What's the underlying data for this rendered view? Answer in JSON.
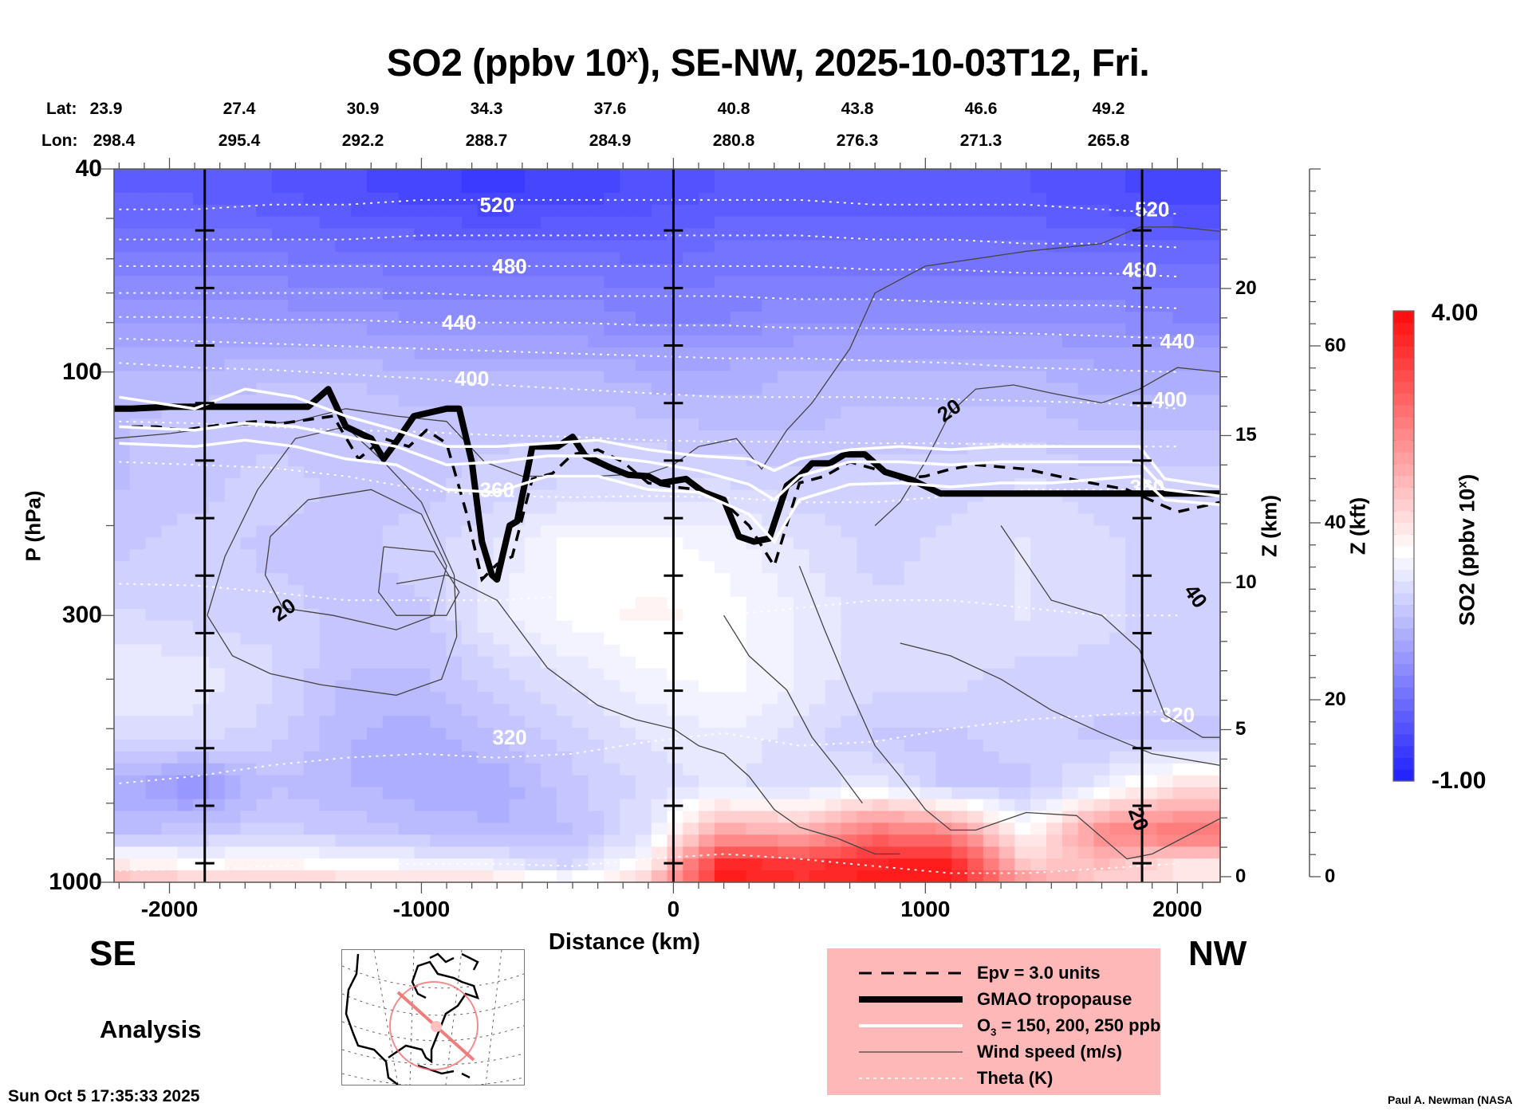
{
  "title": {
    "main": "SO2 (ppbv 10",
    "sup": "x",
    "rest": "), SE-NW, 2025-10-03T12, Fri."
  },
  "header": {
    "lat_label": "Lat:",
    "lon_label": "Lon:",
    "lat": [
      "23.9",
      "27.4",
      "30.9",
      "34.3",
      "37.6",
      "40.8",
      "43.8",
      "46.6",
      "49.2"
    ],
    "lon": [
      "298.4",
      "295.4",
      "292.2",
      "288.7",
      "284.9",
      "280.8",
      "276.3",
      "271.3",
      "265.8"
    ]
  },
  "labels": {
    "se": "SE",
    "nw": "NW",
    "analysis": "Analysis",
    "timestamp": "Sun Oct  5 17:35:33 2025",
    "credit": "Paul A. Newman (NASA"
  },
  "legend": [
    {
      "label": "Epv = 3.0 units",
      "style": "dashed"
    },
    {
      "label": "GMAO tropopause",
      "style": "thick"
    },
    {
      "label": "O",
      "sub": "3",
      "label_rest": " = 150, 200, 250 ppb",
      "style": "white"
    },
    {
      "label": "Wind speed (m/s)",
      "style": "thin"
    },
    {
      "label": "Theta (K)",
      "style": "dotted"
    }
  ],
  "colors": {
    "min": "#0000c8",
    "low": "#1818ff",
    "mid": "#ffffff",
    "high": "#ff1010",
    "legend_bg": "#ffb8b8",
    "map_track": "#f07070"
  },
  "chart_data": {
    "type": "heatmap",
    "title": "SO2 (ppbv 10^x), SE-NW, 2025-10-03T12, Fri.",
    "xlabel": "Distance (km)",
    "ylabel": "P (hPa)",
    "y2label": "Z (km)",
    "y3label": "Z (kft)",
    "xlim": [
      -2220,
      2170
    ],
    "ylim": [
      1000,
      40
    ],
    "yscale": "log",
    "x_ticks": [
      -2000,
      -1000,
      0,
      1000,
      2000
    ],
    "x_tick_labels": [
      "-2000",
      "-1000",
      "0",
      "1000",
      "2000"
    ],
    "y_ticks": [
      40,
      100,
      300,
      1000
    ],
    "y_tick_labels": [
      "40",
      "100",
      "300",
      "1000"
    ],
    "z_km_ticks": [
      0,
      5,
      10,
      15,
      20
    ],
    "z_km_range": [
      0,
      24.2
    ],
    "z_kft_ticks": [
      0,
      20,
      40,
      60
    ],
    "z_kft_range": [
      0,
      80
    ],
    "vertical_markers_km": [
      -1860,
      0,
      1860
    ],
    "colorbar": {
      "label": "SO2 (ppbv 10^x)",
      "min": -1.0,
      "max": 4.0,
      "min_label": "-1.00",
      "max_label": "4.00",
      "levels": 40
    },
    "so2_grid": {
      "x": [
        -2200,
        -1900,
        -1600,
        -1300,
        -1000,
        -700,
        -400,
        -100,
        200,
        500,
        800,
        1100,
        1400,
        1700,
        2000
      ],
      "p": [
        45,
        60,
        80,
        100,
        130,
        170,
        220,
        300,
        400,
        520,
        650,
        800,
        920,
        990
      ],
      "values": [
        [
          -0.2,
          -0.2,
          -0.3,
          -0.4,
          -0.5,
          -0.6,
          -0.5,
          -0.4,
          -0.3,
          -0.3,
          -0.3,
          -0.3,
          -0.3,
          -0.4,
          -0.5
        ],
        [
          0.1,
          0.1,
          0.1,
          0.0,
          0.0,
          0.0,
          0.0,
          -0.1,
          0.0,
          0.0,
          0.0,
          0.0,
          0.0,
          0.0,
          -0.1
        ],
        [
          0.4,
          0.4,
          0.4,
          0.4,
          0.3,
          0.3,
          0.3,
          0.2,
          0.2,
          0.3,
          0.3,
          0.3,
          0.3,
          0.3,
          0.2
        ],
        [
          0.7,
          0.7,
          0.8,
          0.8,
          0.7,
          0.7,
          0.7,
          0.6,
          0.6,
          0.7,
          0.7,
          0.7,
          0.7,
          0.6,
          0.6
        ],
        [
          0.8,
          0.9,
          0.9,
          0.9,
          0.9,
          0.9,
          0.9,
          0.9,
          0.8,
          0.8,
          0.9,
          0.9,
          0.9,
          0.8,
          0.8
        ],
        [
          0.8,
          0.9,
          1.0,
          0.9,
          0.9,
          1.0,
          1.1,
          1.1,
          1.1,
          1.0,
          1.0,
          1.0,
          1.1,
          1.0,
          1.0
        ],
        [
          0.9,
          1.0,
          0.9,
          0.9,
          1.0,
          1.2,
          1.5,
          1.5,
          1.4,
          1.2,
          1.0,
          1.1,
          1.2,
          1.1,
          1.0
        ],
        [
          1.1,
          1.0,
          1.0,
          0.9,
          0.9,
          1.3,
          1.5,
          1.6,
          1.5,
          1.3,
          1.1,
          1.1,
          1.2,
          1.1,
          1.0
        ],
        [
          1.3,
          1.3,
          1.1,
          0.8,
          0.8,
          1.0,
          1.2,
          1.4,
          1.5,
          1.3,
          1.1,
          1.1,
          1.0,
          1.0,
          1.0
        ],
        [
          1.1,
          1.1,
          1.0,
          0.7,
          0.6,
          0.8,
          1.0,
          1.2,
          1.3,
          1.1,
          0.9,
          0.9,
          1.0,
          0.9,
          0.9
        ],
        [
          0.6,
          0.3,
          0.8,
          0.7,
          0.6,
          0.6,
          0.9,
          1.1,
          1.2,
          1.1,
          1.3,
          0.9,
          0.9,
          1.3,
          1.8
        ],
        [
          0.8,
          0.9,
          1.0,
          0.9,
          0.8,
          0.7,
          0.8,
          1.2,
          2.5,
          2.3,
          3.0,
          2.8,
          1.5,
          2.8,
          3.0
        ],
        [
          1.7,
          1.5,
          1.6,
          1.5,
          1.4,
          1.3,
          1.0,
          1.6,
          3.8,
          3.6,
          3.8,
          3.9,
          2.0,
          2.2,
          1.8
        ],
        [
          2.2,
          2.0,
          1.9,
          1.9,
          1.8,
          1.8,
          1.5,
          2.0,
          3.9,
          3.7,
          3.9,
          3.9,
          2.5,
          2.0,
          1.8
        ]
      ]
    },
    "theta_labels_K": [
      520,
      480,
      440,
      400,
      360,
      320
    ],
    "wind_labels_ms": [
      20,
      20,
      20,
      40
    ],
    "series": [
      {
        "name": "GMAO tropopause",
        "unit": "hPa",
        "x": [
          -2220,
          -2150,
          -2000,
          -1700,
          -1450,
          -1370,
          -1300,
          -1200,
          -1150,
          -1100,
          -1030,
          -900,
          -850,
          -800,
          -760,
          -720,
          -700,
          -650,
          -620,
          -560,
          -460,
          -400,
          -350,
          -250,
          -180,
          -100,
          -50,
          50,
          120,
          200,
          260,
          320,
          380,
          450,
          500,
          550,
          620,
          680,
          760,
          840,
          950,
          1060,
          1130,
          1200,
          1400,
          1700,
          2000,
          2170
        ],
        "p": [
          118,
          118,
          117,
          117,
          117,
          108,
          128,
          135,
          148,
          137,
          122,
          118,
          118,
          150,
          215,
          250,
          255,
          200,
          196,
          140,
          140,
          134,
          146,
          154,
          159,
          160,
          165,
          162,
          172,
          178,
          210,
          215,
          212,
          167,
          160,
          151,
          151,
          145,
          145,
          157,
          163,
          173,
          173,
          173,
          173,
          173,
          173,
          173
        ]
      },
      {
        "name": "Epv = 3.0 units",
        "unit": "hPa",
        "x": [
          -2150,
          -2050,
          -1950,
          -1850,
          -1750,
          -1650,
          -1550,
          -1450,
          -1350,
          -1250,
          -1150,
          -1050,
          -980,
          -900,
          -820,
          -760,
          -700,
          -640,
          -560,
          -480,
          -400,
          -300,
          -200,
          -100,
          0,
          100,
          200,
          300,
          400,
          500,
          600,
          700,
          800,
          900,
          1000,
          1100,
          1200,
          1400,
          1600,
          1800,
          2000,
          2170
        ],
        "p": [
          128,
          128,
          130,
          128,
          126,
          125,
          126,
          124,
          122,
          148,
          135,
          140,
          130,
          138,
          190,
          255,
          238,
          230,
          162,
          158,
          145,
          142,
          150,
          165,
          168,
          170,
          180,
          200,
          240,
          165,
          160,
          150,
          155,
          162,
          160,
          155,
          152,
          155,
          163,
          170,
          188,
          180
        ]
      },
      {
        "name": "O3 150 ppb",
        "unit": "hPa",
        "x": [
          -2200,
          -1900,
          -1700,
          -1500,
          -1300,
          -1100,
          -900,
          -700,
          -500,
          -300,
          -100,
          100,
          300,
          400,
          500,
          700,
          900,
          1100,
          1300,
          1500,
          1700,
          1850,
          1950,
          2170
        ],
        "p": [
          112,
          118,
          108,
          112,
          122,
          130,
          140,
          140,
          138,
          136,
          142,
          146,
          148,
          156,
          148,
          142,
          140,
          142,
          140,
          140,
          140,
          140,
          162,
          168
        ]
      },
      {
        "name": "O3 200 ppb",
        "unit": "hPa",
        "x": [
          -2200,
          -1900,
          -1700,
          -1500,
          -1300,
          -1100,
          -900,
          -700,
          -500,
          -300,
          -100,
          100,
          300,
          400,
          500,
          700,
          900,
          1100,
          1300,
          1500,
          1700,
          1850,
          1950,
          2170
        ],
        "p": [
          128,
          130,
          126,
          128,
          134,
          140,
          152,
          150,
          146,
          146,
          150,
          156,
          166,
          178,
          160,
          150,
          150,
          152,
          150,
          150,
          150,
          150,
          170,
          175
        ]
      },
      {
        "name": "O3 250 ppb",
        "unit": "hPa",
        "x": [
          -2200,
          -1900,
          -1700,
          -1500,
          -1300,
          -1100,
          -900,
          -700,
          -500,
          -300,
          -100,
          100,
          300,
          400,
          500,
          700,
          900,
          1100,
          1300,
          1500,
          1700,
          1850,
          1950,
          2170
        ],
        "p": [
          138,
          140,
          136,
          140,
          148,
          152,
          170,
          172,
          160,
          160,
          170,
          172,
          190,
          215,
          178,
          166,
          165,
          168,
          165,
          165,
          162,
          160,
          178,
          182
        ]
      }
    ],
    "theta_lines": [
      {
        "K": 520,
        "p": [
          48,
          48,
          47,
          47,
          46,
          46,
          46,
          46,
          46,
          46,
          47,
          47,
          47,
          48,
          49
        ]
      },
      {
        "K": 500,
        "p": [
          55,
          55,
          55,
          55,
          54,
          54,
          54,
          54,
          54,
          54,
          55,
          55,
          56,
          56,
          57
        ]
      },
      {
        "K": 480,
        "p": [
          62,
          62,
          62,
          62,
          62,
          62,
          62,
          62,
          62,
          62,
          63,
          63,
          64,
          64,
          65
        ]
      },
      {
        "K": 460,
        "p": [
          70,
          70,
          70,
          70,
          70,
          71,
          71,
          71,
          71,
          72,
          72,
          73,
          74,
          74,
          75
        ]
      },
      {
        "K": 440,
        "p": [
          78,
          78,
          79,
          79,
          80,
          80,
          80,
          81,
          81,
          82,
          82,
          83,
          84,
          85,
          86
        ]
      },
      {
        "K": 420,
        "p": [
          86,
          87,
          88,
          89,
          90,
          91,
          92,
          93,
          94,
          94,
          95,
          96,
          98,
          99,
          100
        ]
      },
      {
        "K": 400,
        "p": [
          96,
          98,
          99,
          101,
          103,
          106,
          108,
          110,
          112,
          112,
          112,
          113,
          114,
          115,
          118
        ]
      },
      {
        "K": 380,
        "p": [
          125,
          126,
          128,
          130,
          131,
          133,
          134,
          136,
          137,
          137,
          138,
          138,
          139,
          140,
          140
        ]
      },
      {
        "K": 360,
        "p": [
          150,
          152,
          154,
          160,
          170,
          175,
          176,
          175,
          176,
          180,
          180,
          175,
          170,
          170,
          170
        ]
      },
      {
        "K": 340,
        "p": [
          260,
          262,
          270,
          280,
          280,
          280,
          275,
          270,
          300,
          290,
          280,
          280,
          290,
          300,
          300
        ]
      },
      {
        "K": 320,
        "p": [
          640,
          620,
          590,
          570,
          560,
          570,
          560,
          530,
          510,
          540,
          530,
          500,
          480,
          470,
          460
        ]
      },
      {
        "K": 300,
        "p": [
          950,
          940,
          930,
          920,
          920,
          920,
          930,
          900,
          880,
          900,
          930,
          960,
          960,
          940,
          920
        ]
      }
    ],
    "theta_x": [
      -2200,
      -1900,
      -1600,
      -1300,
      -1000,
      -700,
      -400,
      -100,
      200,
      500,
      800,
      1100,
      1400,
      1700,
      2000
    ]
  }
}
